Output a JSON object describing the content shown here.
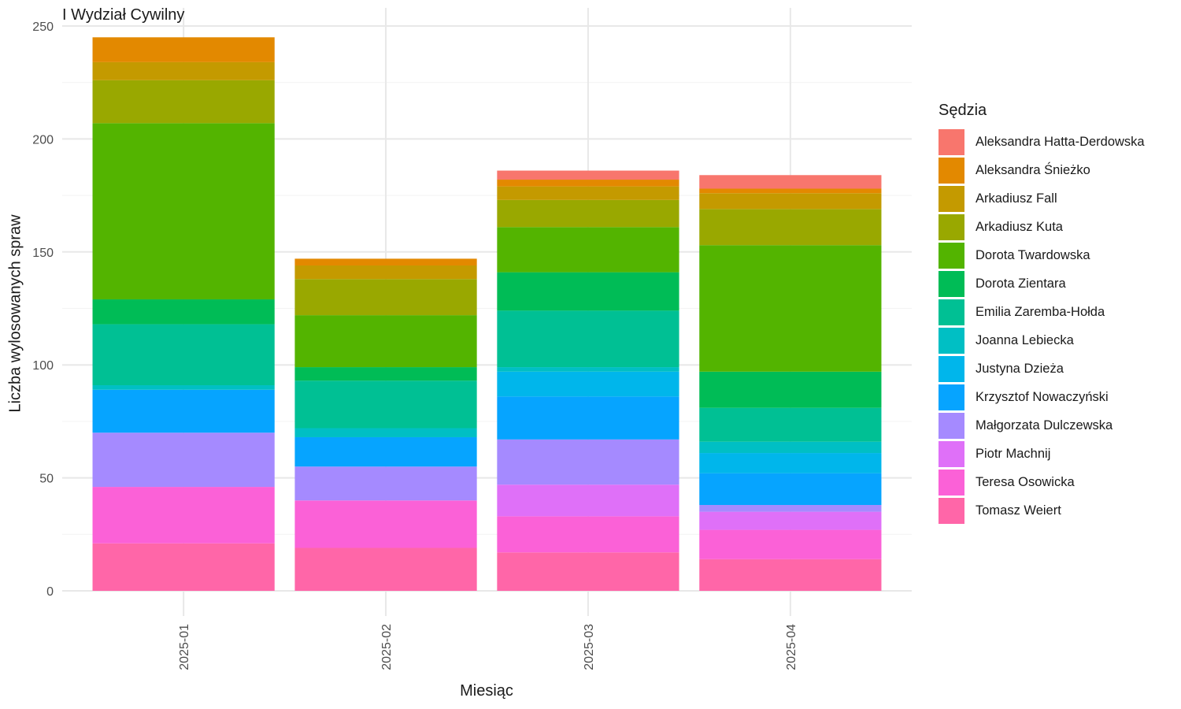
{
  "chart_data": {
    "type": "bar",
    "stacked": true,
    "title": "I Wydział Cywilny",
    "xlabel": "Miesiąc",
    "ylabel": "Liczba wylosowanych spraw",
    "ylim": [
      0,
      250
    ],
    "yticks": [
      0,
      50,
      100,
      150,
      200,
      250
    ],
    "grid": true,
    "legend_title": "Sędzia",
    "legend_position": "right",
    "categories": [
      "2025-01",
      "2025-02",
      "2025-03",
      "2025-04"
    ],
    "series": [
      {
        "name": "Aleksandra Hatta-Derdowska",
        "color": "#F8766D",
        "values": [
          0,
          0,
          4,
          6
        ]
      },
      {
        "name": "Aleksandra Śnieżko",
        "color": "#E38900",
        "values": [
          11,
          3,
          3,
          2
        ]
      },
      {
        "name": "Arkadiusz Fall",
        "color": "#C49A00",
        "values": [
          8,
          6,
          6,
          7
        ]
      },
      {
        "name": "Arkadiusz Kuta",
        "color": "#99A800",
        "values": [
          19,
          16,
          12,
          16
        ]
      },
      {
        "name": "Dorota Twardowska",
        "color": "#53B400",
        "values": [
          78,
          23,
          20,
          56
        ]
      },
      {
        "name": "Dorota Zientara",
        "color": "#00BC56",
        "values": [
          11,
          6,
          17,
          16
        ]
      },
      {
        "name": "Emilia Zaremba-Hołda",
        "color": "#00C094",
        "values": [
          27,
          21,
          25,
          15
        ]
      },
      {
        "name": "Joanna Lebiecka",
        "color": "#00BFC4",
        "values": [
          2,
          4,
          2,
          5
        ]
      },
      {
        "name": "Justyna Dzieża",
        "color": "#00B6EB",
        "values": [
          0,
          0,
          11,
          9
        ]
      },
      {
        "name": "Krzysztof Nowaczyński",
        "color": "#06A4FF",
        "values": [
          19,
          13,
          19,
          14
        ]
      },
      {
        "name": "Małgorzata Dulczewska",
        "color": "#A58AFF",
        "values": [
          24,
          15,
          20,
          3
        ]
      },
      {
        "name": "Piotr Machnij",
        "color": "#DF70F8",
        "values": [
          0,
          0,
          14,
          8
        ]
      },
      {
        "name": "Teresa Osowicka",
        "color": "#FB61D7",
        "values": [
          25,
          21,
          16,
          13
        ]
      },
      {
        "name": "Tomasz Weiert",
        "color": "#FF66A8",
        "values": [
          21,
          19,
          17,
          14
        ]
      }
    ]
  }
}
